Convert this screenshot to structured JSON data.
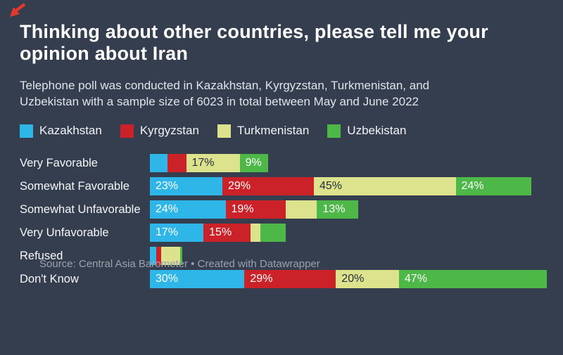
{
  "header": {
    "title": "Thinking about other countries, please tell me your opinion about Iran",
    "subtitle": "Telephone poll was conducted in Kazakhstan, Kyrgyzstan, Turkmenistan, and Uzbekistan with a sample size of 6023 in total between May and June 2022"
  },
  "icons": {
    "cursor": "red-arrow-down-left-icon"
  },
  "chart_data": {
    "type": "bar",
    "variant": "horizontal-stacked",
    "unit": "%",
    "legend_position": "top",
    "grid": false,
    "categories": [
      "Very Favorable",
      "Somewhat Favorable",
      "Somewhat Unfavorable",
      "Very Unfavorable",
      "Refused",
      "Don't Know"
    ],
    "series": [
      {
        "name": "Kazakhstan",
        "color": "#2fb6e9",
        "label_color": "#ffffff",
        "values": [
          5.5,
          23,
          24,
          17,
          2,
          30
        ],
        "labels": [
          null,
          "23%",
          "24%",
          "17%",
          null,
          "30%"
        ]
      },
      {
        "name": "Kyrgyzstan",
        "color": "#cb2128",
        "label_color": "#ffffff",
        "values": [
          6,
          29,
          19,
          15,
          1.5,
          29
        ],
        "labels": [
          null,
          "29%",
          "19%",
          "15%",
          null,
          "29%"
        ]
      },
      {
        "name": "Turkmenistan",
        "color": "#dde28d",
        "label_color": "#24303c",
        "values": [
          17,
          45,
          10,
          3,
          6,
          20
        ],
        "labels": [
          "17%",
          "45%",
          null,
          null,
          null,
          "20%"
        ]
      },
      {
        "name": "Uzbekistan",
        "color": "#4db848",
        "label_color": "#ffffff",
        "values": [
          9,
          24,
          13,
          8,
          0.7,
          47
        ],
        "labels": [
          "9%",
          "24%",
          "13%",
          null,
          null,
          "47%"
        ]
      }
    ]
  },
  "footer": {
    "text": "Source: Central Asia Barometer • Created with Datawrapper"
  },
  "colors": {
    "background": "#343e4f",
    "title": "#ffffff",
    "subtitle": "#dfe4e8",
    "row_label": "#f5f7f8",
    "legend_label": "#f2f4f6",
    "footer": "#9aa2ad",
    "arrow": "#e2392b"
  }
}
